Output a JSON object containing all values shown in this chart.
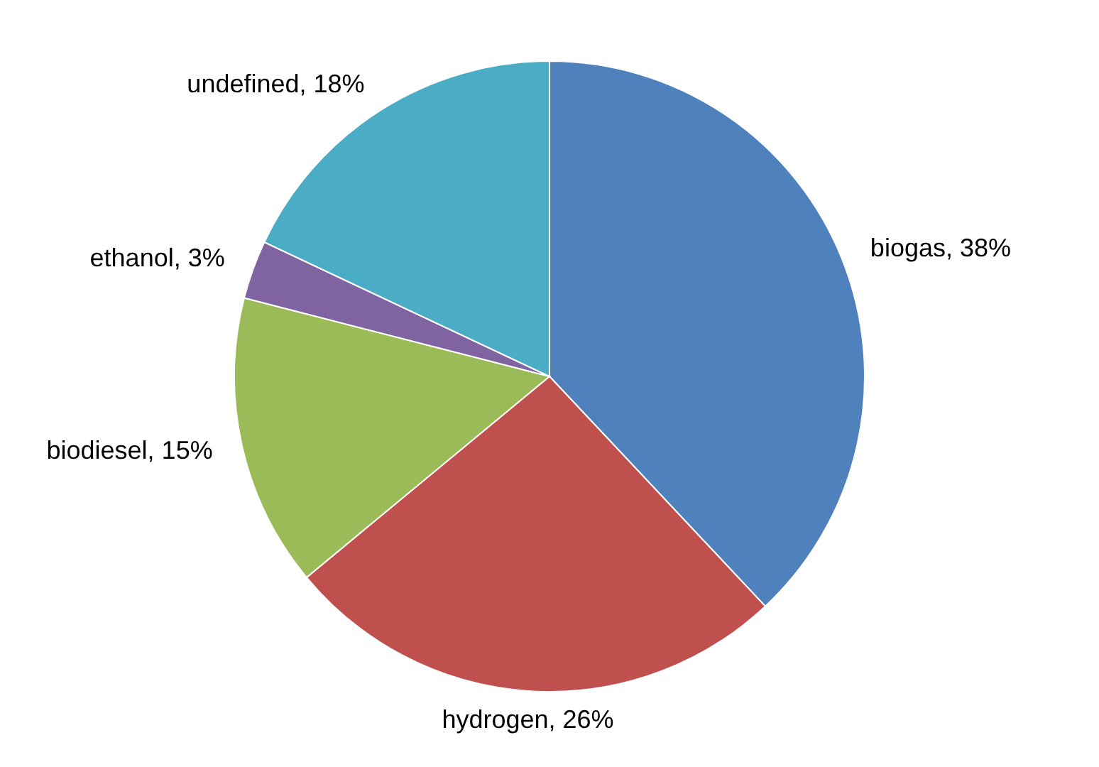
{
  "chart_data": {
    "type": "pie",
    "categories": [
      "biogas",
      "hydrogen",
      "biodiesel",
      "ethanol",
      "undefined"
    ],
    "values": [
      38,
      26,
      15,
      3,
      18
    ],
    "value_labels": [
      "38%",
      "26%",
      "15%",
      "3%",
      "18%"
    ],
    "colors": [
      "#4f81bd",
      "#c0504d",
      "#9bbb59",
      "#8064a2",
      "#4bacc6"
    ]
  }
}
